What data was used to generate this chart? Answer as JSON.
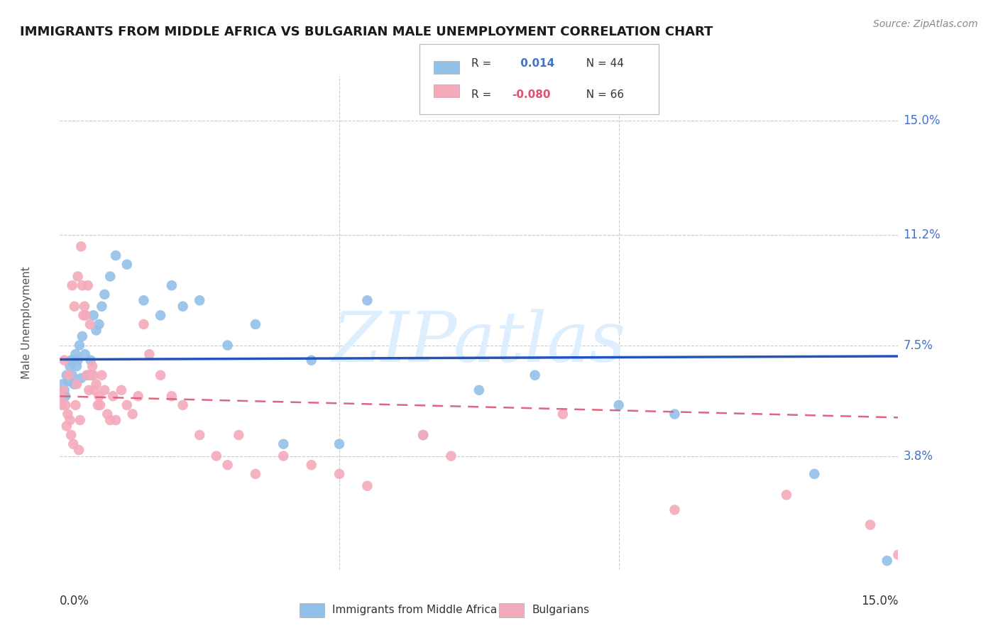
{
  "title": "IMMIGRANTS FROM MIDDLE AFRICA VS BULGARIAN MALE UNEMPLOYMENT CORRELATION CHART",
  "source": "Source: ZipAtlas.com",
  "ylabel": "Male Unemployment",
  "yticks": [
    3.8,
    7.5,
    11.2,
    15.0
  ],
  "xmin": 0.0,
  "xmax": 15.0,
  "ymin": 0.0,
  "ymax": 16.5,
  "blue_R": 0.014,
  "blue_N": 44,
  "pink_R": -0.08,
  "pink_N": 66,
  "blue_color": "#92C0E8",
  "pink_color": "#F4AABB",
  "blue_line_color": "#2255BB",
  "pink_line_color": "#DD6680",
  "watermark": "ZIPatlas",
  "watermark_color": "#DDEEFF",
  "legend_blue_label": "Immigrants from Middle Africa",
  "legend_pink_label": "Bulgarians",
  "blue_x": [
    0.05,
    0.08,
    0.1,
    0.12,
    0.15,
    0.18,
    0.2,
    0.22,
    0.25,
    0.28,
    0.3,
    0.32,
    0.35,
    0.38,
    0.4,
    0.45,
    0.5,
    0.55,
    0.6,
    0.65,
    0.7,
    0.75,
    0.8,
    0.9,
    1.0,
    1.2,
    1.5,
    1.8,
    2.0,
    2.2,
    2.5,
    3.0,
    3.5,
    4.0,
    4.5,
    5.0,
    5.5,
    6.5,
    7.5,
    8.5,
    10.0,
    11.0,
    13.5,
    14.8
  ],
  "blue_y": [
    6.2,
    6.0,
    5.8,
    6.5,
    6.3,
    6.8,
    7.0,
    6.5,
    6.2,
    7.2,
    6.8,
    7.0,
    7.5,
    6.4,
    7.8,
    7.2,
    6.5,
    7.0,
    8.5,
    8.0,
    8.2,
    8.8,
    9.2,
    9.8,
    10.5,
    10.2,
    9.0,
    8.5,
    9.5,
    8.8,
    9.0,
    7.5,
    8.2,
    4.2,
    7.0,
    4.2,
    9.0,
    4.5,
    6.0,
    6.5,
    5.5,
    5.2,
    3.2,
    0.3
  ],
  "pink_x": [
    0.02,
    0.04,
    0.06,
    0.08,
    0.1,
    0.12,
    0.14,
    0.16,
    0.18,
    0.2,
    0.22,
    0.24,
    0.26,
    0.28,
    0.3,
    0.32,
    0.34,
    0.36,
    0.38,
    0.4,
    0.42,
    0.44,
    0.46,
    0.48,
    0.5,
    0.52,
    0.54,
    0.56,
    0.58,
    0.6,
    0.62,
    0.65,
    0.68,
    0.7,
    0.72,
    0.75,
    0.8,
    0.85,
    0.9,
    0.95,
    1.0,
    1.1,
    1.2,
    1.3,
    1.4,
    1.5,
    1.6,
    1.8,
    2.0,
    2.2,
    2.5,
    2.8,
    3.0,
    3.2,
    3.5,
    4.0,
    4.5,
    5.0,
    5.5,
    6.5,
    7.0,
    9.0,
    11.0,
    13.0,
    14.5,
    15.0
  ],
  "pink_y": [
    5.8,
    5.5,
    6.0,
    7.0,
    5.5,
    4.8,
    5.2,
    6.5,
    5.0,
    4.5,
    9.5,
    4.2,
    8.8,
    5.5,
    6.2,
    9.8,
    4.0,
    5.0,
    10.8,
    9.5,
    8.5,
    8.8,
    8.5,
    6.5,
    9.5,
    6.0,
    8.2,
    6.5,
    6.8,
    6.5,
    6.0,
    6.2,
    5.5,
    5.8,
    5.5,
    6.5,
    6.0,
    5.2,
    5.0,
    5.8,
    5.0,
    6.0,
    5.5,
    5.2,
    5.8,
    8.2,
    7.2,
    6.5,
    5.8,
    5.5,
    4.5,
    3.8,
    3.5,
    4.5,
    3.2,
    3.8,
    3.5,
    3.2,
    2.8,
    4.5,
    3.8,
    5.2,
    2.0,
    2.5,
    1.5,
    0.5
  ]
}
